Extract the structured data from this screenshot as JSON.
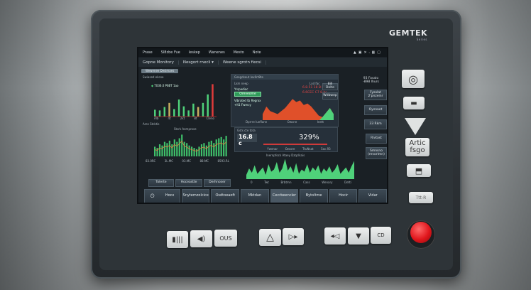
{
  "device": {
    "brand": "GEMTEK",
    "brand_sub": "Series"
  },
  "topbar": {
    "items": [
      "Prase",
      "Sl8zbe Fue",
      "Ieskep",
      "Wanenes",
      "Mesto",
      "Note"
    ]
  },
  "header": {
    "title": "Gopne Monitory",
    "dropdown": "Nesgort rnecli ▾",
    "subtitle": "Weene sgrotn fiecsi"
  },
  "tab": "Wewenee Desimaes",
  "left_chart": {
    "title": "Swiased ekcxe",
    "legend": "T036.0 P6BT 1ao",
    "xlabels": [
      "Alb",
      "4t",
      "2kt",
      "8t",
      "Cleno"
    ],
    "values": [
      20,
      18,
      28,
      40,
      22,
      50,
      30,
      18,
      38,
      28,
      40,
      65,
      95
    ],
    "colors": [
      "#4fd17a",
      "#4fd17a",
      "#4fd17a",
      "#c8b060",
      "#4fd17a",
      "#4fd17a",
      "#4fd17a",
      "#4fd17a",
      "#4fd17a",
      "#c8b060",
      "#4fd17a",
      "#4fd17a",
      "#e03b3b"
    ]
  },
  "center_panel": {
    "title": "Gsegdseut Iex0rt8te",
    "label1": "Lkm neep",
    "label2": "Yrspediac",
    "green_button": "Oreveome",
    "note1": "Vibrated tb Regrox",
    "note2": "+lt1 Fwmcy",
    "readout_label": "Lxd fac",
    "readout1": "6.8.51 18 B hc",
    "readout2": "6.6CEC C7 8 hc",
    "btn1": "Bill Delte",
    "btn2": "Wdbwep",
    "xlabels": [
      "Dprrre Iueflann",
      "Owcne",
      "Inett"
    ],
    "area_values": [
      20,
      45,
      30,
      25,
      20,
      30,
      40,
      55,
      70,
      60,
      65,
      50,
      55,
      45,
      30,
      15,
      10,
      25,
      40,
      20
    ],
    "green_values": [
      0,
      0,
      0,
      0,
      0,
      0,
      0,
      0,
      0,
      0,
      0,
      0,
      0,
      0,
      0,
      0,
      10,
      25,
      40,
      20
    ]
  },
  "side_menu": {
    "title": "93 Fosalo",
    "subtitle": "-898 Ihurs",
    "buttons": [
      "Fysolat 2'pnzeinr",
      "Oysnaet",
      "33 Rkm",
      "Rivtast",
      "Smnsno (revorlmn)"
    ]
  },
  "lower_left_chart": {
    "section": "Ares Stcktis",
    "title": "Stsrk Aemprose",
    "xlabels": [
      "83.0RC",
      "3L.MC",
      "03.MC",
      "88.MC",
      "8593.RL"
    ],
    "values": [
      40,
      35,
      50,
      45,
      60,
      55,
      65,
      50,
      70,
      60,
      75,
      90,
      60,
      55,
      45,
      40,
      35,
      30,
      40,
      50,
      55,
      45,
      60,
      65,
      55,
      70,
      75,
      80,
      70,
      85
    ]
  },
  "gauge": {
    "label": "Gsts cte tota",
    "value": "16.8 c",
    "percent": "329%",
    "buttons": [
      "Ywenar",
      "Ozcore",
      "TtuNsat",
      "5ac.93"
    ]
  },
  "lower_chart": {
    "title": "Inernpfock Ataey Dzqclkais",
    "xlabels": [
      "0",
      "Twt",
      "Brbtmn",
      "Cass",
      "Wenary",
      "Detti"
    ],
    "values": [
      20,
      50,
      30,
      65,
      25,
      40,
      55,
      20,
      70,
      35,
      45,
      80,
      30,
      50,
      95,
      40,
      60,
      30,
      75,
      25,
      45,
      35,
      70,
      30,
      55,
      40,
      65,
      25,
      50,
      35,
      60,
      30,
      45,
      70,
      25,
      40,
      55,
      30,
      60,
      85
    ]
  },
  "action_buttons": [
    "Tolerte",
    "Hoceastte",
    "Derhnoser"
  ],
  "nav": [
    "Hocx",
    "Snytemzolcice",
    "Osdtoeaoft",
    "Mktdan",
    "Cecrbeencler",
    "Bytoltme",
    "Hocir",
    "Vidar"
  ],
  "hardware": {
    "side_label": "Artic fsgo",
    "side_bottom": "Ttt-R",
    "bottom_text1": "OUS",
    "bottom_text2": "CD"
  },
  "colors": {
    "accent_green": "#4fd17a",
    "alarm_red": "#e03b3b",
    "stop_button": "#e0161c"
  }
}
